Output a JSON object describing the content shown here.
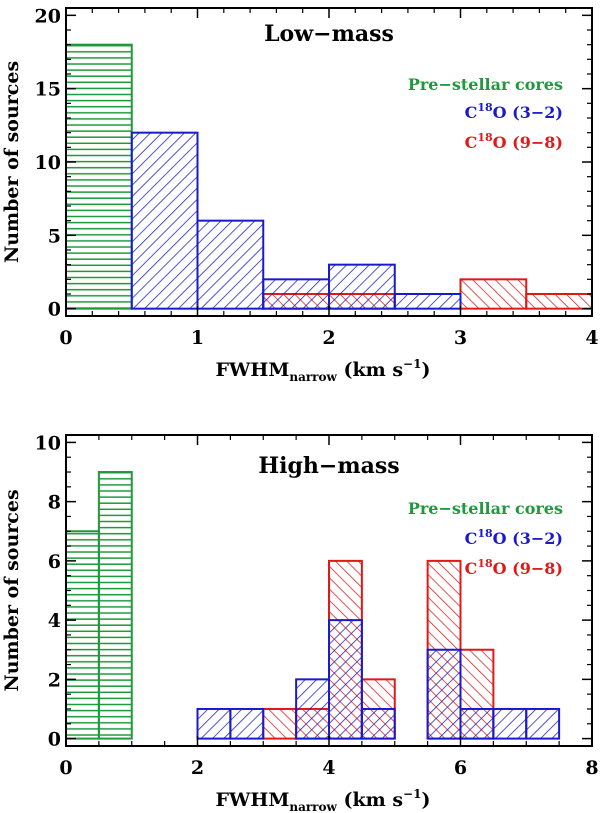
{
  "chart_data": [
    {
      "type": "bar",
      "title": "Low−mass",
      "xlabel": "FWHM",
      "xlabel_sub": "narrow",
      "xlabel_units": " (km s",
      "xlabel_sup": "−1",
      "xlabel_close": ")",
      "ylabel": "Number of sources",
      "xlim": [
        0,
        4
      ],
      "ylim": [
        -0.5,
        20.5
      ],
      "xticks": [
        0,
        1,
        2,
        3,
        4
      ],
      "yticks": [
        0,
        5,
        10,
        15,
        20
      ],
      "legend": [
        {
          "prefix": "Pre−stellar cores",
          "sup": "",
          "suffix": "",
          "color": "#1e9a3c"
        },
        {
          "prefix": "C",
          "sup": "18",
          "suffix": "O (3−2)",
          "color": "#1a1acd"
        },
        {
          "prefix": "C",
          "sup": "18",
          "suffix": "O (9−8)",
          "color": "#e01818"
        }
      ],
      "series": [
        {
          "name": "Pre-stellar cores",
          "color": "#1e9a3c",
          "hatch": "horizontal",
          "bins": [
            {
              "x0": 0,
              "x1": 0.5,
              "y": 18
            }
          ]
        },
        {
          "name": "C18O (3-2)",
          "color": "#1a1acd",
          "hatch": "diag-up",
          "bins": [
            {
              "x0": 0.5,
              "x1": 1.0,
              "y": 12
            },
            {
              "x0": 1.0,
              "x1": 1.5,
              "y": 6
            },
            {
              "x0": 1.5,
              "x1": 2.0,
              "y": 2
            },
            {
              "x0": 2.0,
              "x1": 2.5,
              "y": 3
            },
            {
              "x0": 2.5,
              "x1": 3.0,
              "y": 1
            }
          ]
        },
        {
          "name": "C18O (9-8)",
          "color": "#e01818",
          "hatch": "diag-down",
          "bins": [
            {
              "x0": 1.5,
              "x1": 2.0,
              "y": 1
            },
            {
              "x0": 2.0,
              "x1": 2.5,
              "y": 1
            },
            {
              "x0": 3.0,
              "x1": 3.5,
              "y": 2
            },
            {
              "x0": 3.5,
              "x1": 4.0,
              "y": 1
            }
          ]
        }
      ]
    },
    {
      "type": "bar",
      "title": "High−mass",
      "xlabel": "FWHM",
      "xlabel_sub": "narrow",
      "xlabel_units": " (km s",
      "xlabel_sup": "−1",
      "xlabel_close": ")",
      "ylabel": "Number of sources",
      "xlim": [
        0,
        8
      ],
      "ylim": [
        -0.25,
        10.25
      ],
      "xticks": [
        0,
        2,
        4,
        6,
        8
      ],
      "yticks": [
        0,
        2,
        4,
        6,
        8,
        10
      ],
      "legend": [
        {
          "prefix": "Pre−stellar cores",
          "sup": "",
          "suffix": "",
          "color": "#1e9a3c"
        },
        {
          "prefix": "C",
          "sup": "18",
          "suffix": "O (3−2)",
          "color": "#1a1acd"
        },
        {
          "prefix": "C",
          "sup": "18",
          "suffix": "O (9−8)",
          "color": "#e01818"
        }
      ],
      "series": [
        {
          "name": "Pre-stellar cores",
          "color": "#1e9a3c",
          "hatch": "horizontal",
          "bins": [
            {
              "x0": 0,
              "x1": 0.5,
              "y": 7
            },
            {
              "x0": 0.5,
              "x1": 1.0,
              "y": 9
            }
          ]
        },
        {
          "name": "C18O (3-2)",
          "color": "#1a1acd",
          "hatch": "diag-up",
          "bins": [
            {
              "x0": 2.0,
              "x1": 2.5,
              "y": 1
            },
            {
              "x0": 2.5,
              "x1": 3.0,
              "y": 1
            },
            {
              "x0": 3.5,
              "x1": 4.0,
              "y": 2
            },
            {
              "x0": 4.0,
              "x1": 4.5,
              "y": 4
            },
            {
              "x0": 4.5,
              "x1": 5.0,
              "y": 1
            },
            {
              "x0": 5.5,
              "x1": 6.0,
              "y": 3
            },
            {
              "x0": 6.0,
              "x1": 6.5,
              "y": 1
            },
            {
              "x0": 6.5,
              "x1": 7.0,
              "y": 1
            },
            {
              "x0": 7.0,
              "x1": 7.5,
              "y": 1
            }
          ]
        },
        {
          "name": "C18O (9-8)",
          "color": "#e01818",
          "hatch": "diag-down",
          "bins": [
            {
              "x0": 3.0,
              "x1": 3.5,
              "y": 1
            },
            {
              "x0": 3.5,
              "x1": 4.0,
              "y": 1
            },
            {
              "x0": 4.0,
              "x1": 4.5,
              "y": 6
            },
            {
              "x0": 4.5,
              "x1": 5.0,
              "y": 2
            },
            {
              "x0": 5.5,
              "x1": 6.0,
              "y": 6
            },
            {
              "x0": 6.0,
              "x1": 6.5,
              "y": 3
            }
          ]
        }
      ]
    }
  ]
}
